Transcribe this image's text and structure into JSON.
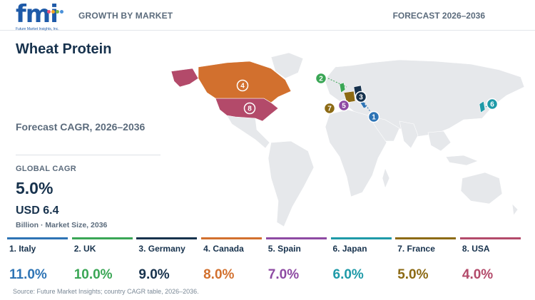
{
  "header": {
    "logo_text": "fmi",
    "logo_tagline": "Future Market Insights, Inc.",
    "left_label": "GROWTH BY MARKET",
    "right_label": "FORECAST 2026–2036"
  },
  "title": "Wheat Protein",
  "subtitle": "Forecast CAGR, 2026–2036",
  "global": {
    "label": "GLOBAL CAGR",
    "value": "5.0%",
    "market_size": "USD 6.4",
    "market_size_note": "Billion · Market Size, 2036"
  },
  "chart_data": {
    "type": "table",
    "unit": "%",
    "countries": [
      {
        "rank": 1,
        "label": "1. Italy",
        "cagr": 11.0,
        "display": "11.0%",
        "color": "#2e74b5"
      },
      {
        "rank": 2,
        "label": "2. UK",
        "cagr": 10.0,
        "display": "10.0%",
        "color": "#3aa655"
      },
      {
        "rank": 3,
        "label": "3. Germany",
        "cagr": 9.0,
        "display": "9.0%",
        "color": "#17324d"
      },
      {
        "rank": 4,
        "label": "4. Canada",
        "cagr": 8.0,
        "display": "8.0%",
        "color": "#d2702e"
      },
      {
        "rank": 5,
        "label": "5. Spain",
        "cagr": 7.0,
        "display": "7.0%",
        "color": "#8e4aa3"
      },
      {
        "rank": 6,
        "label": "6. Japan",
        "cagr": 6.0,
        "display": "6.0%",
        "color": "#1e9aa8"
      },
      {
        "rank": 7,
        "label": "7. France",
        "cagr": 5.0,
        "display": "5.0%",
        "color": "#8c6a14"
      },
      {
        "rank": 8,
        "label": "8. USA",
        "cagr": 4.0,
        "display": "4.0%",
        "color": "#b34a6a"
      }
    ]
  },
  "source": "Source: Future Market Insights; country CAGR table, 2026–2036."
}
